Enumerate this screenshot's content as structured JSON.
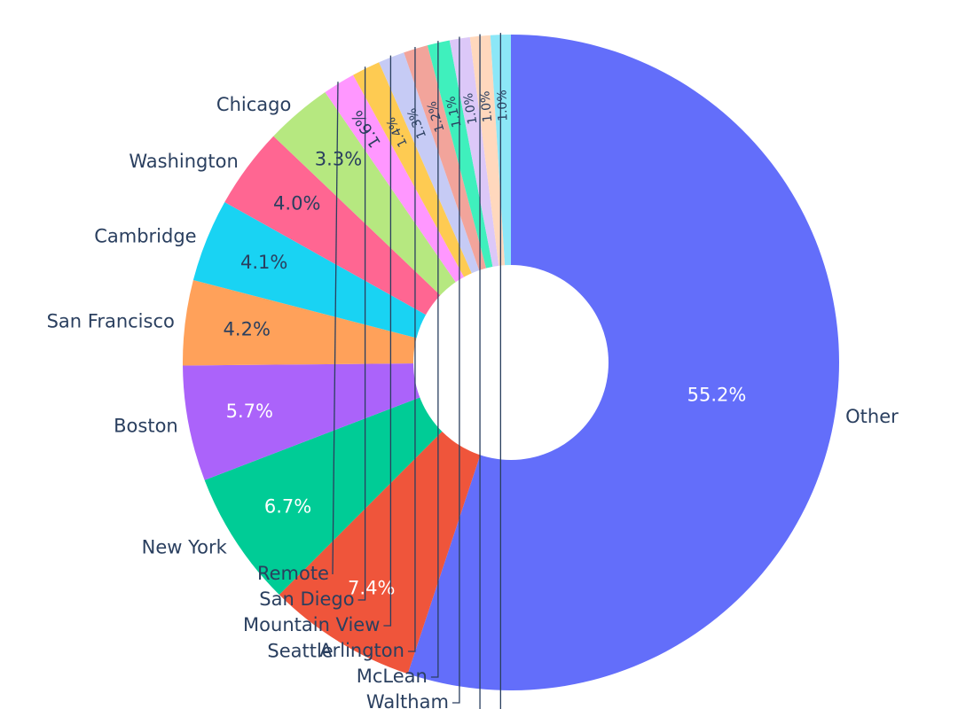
{
  "chart_data": {
    "type": "pie",
    "hole": true,
    "title": "",
    "slices": [
      {
        "label": "Other",
        "value": 55.2,
        "pct_text": "55.2%",
        "color": "#636efa"
      },
      {
        "label": "Seattle",
        "value": 7.4,
        "pct_text": "7.4%",
        "color": "#ef553b"
      },
      {
        "label": "New York",
        "value": 6.7,
        "pct_text": "6.7%",
        "color": "#00cc96"
      },
      {
        "label": "Boston",
        "value": 5.7,
        "pct_text": "5.7%",
        "color": "#ab63fa"
      },
      {
        "label": "San Francisco",
        "value": 4.2,
        "pct_text": "4.2%",
        "color": "#ffa15a"
      },
      {
        "label": "Cambridge",
        "value": 4.1,
        "pct_text": "4.1%",
        "color": "#19d3f3"
      },
      {
        "label": "Washington",
        "value": 4.0,
        "pct_text": "4.0%",
        "color": "#ff6692"
      },
      {
        "label": "Chicago",
        "value": 3.3,
        "pct_text": "3.3%",
        "color": "#b6e880"
      },
      {
        "label": "Remote",
        "value": 1.6,
        "pct_text": "1.6%",
        "color": "#ff97ff"
      },
      {
        "label": "San Diego",
        "value": 1.4,
        "pct_text": "1.4%",
        "color": "#fecb52"
      },
      {
        "label": "Mountain View",
        "value": 1.3,
        "pct_text": "1.3%",
        "color": "#c6cbf5"
      },
      {
        "label": "Arlington",
        "value": 1.2,
        "pct_text": "1.2%",
        "color": "#f2a49b"
      },
      {
        "label": "McLean",
        "value": 1.1,
        "pct_text": "1.1%",
        "color": "#3ff0bd"
      },
      {
        "label": "Waltham",
        "value": 1.0,
        "pct_text": "1.0%",
        "color": "#dcc8f8"
      },
      {
        "label": "",
        "value": 1.0,
        "pct_text": "1.0%",
        "color": "#ffd8bd"
      },
      {
        "label": "",
        "value": 1.0,
        "pct_text": "1.0%",
        "color": "#8ce7f7"
      }
    ]
  }
}
